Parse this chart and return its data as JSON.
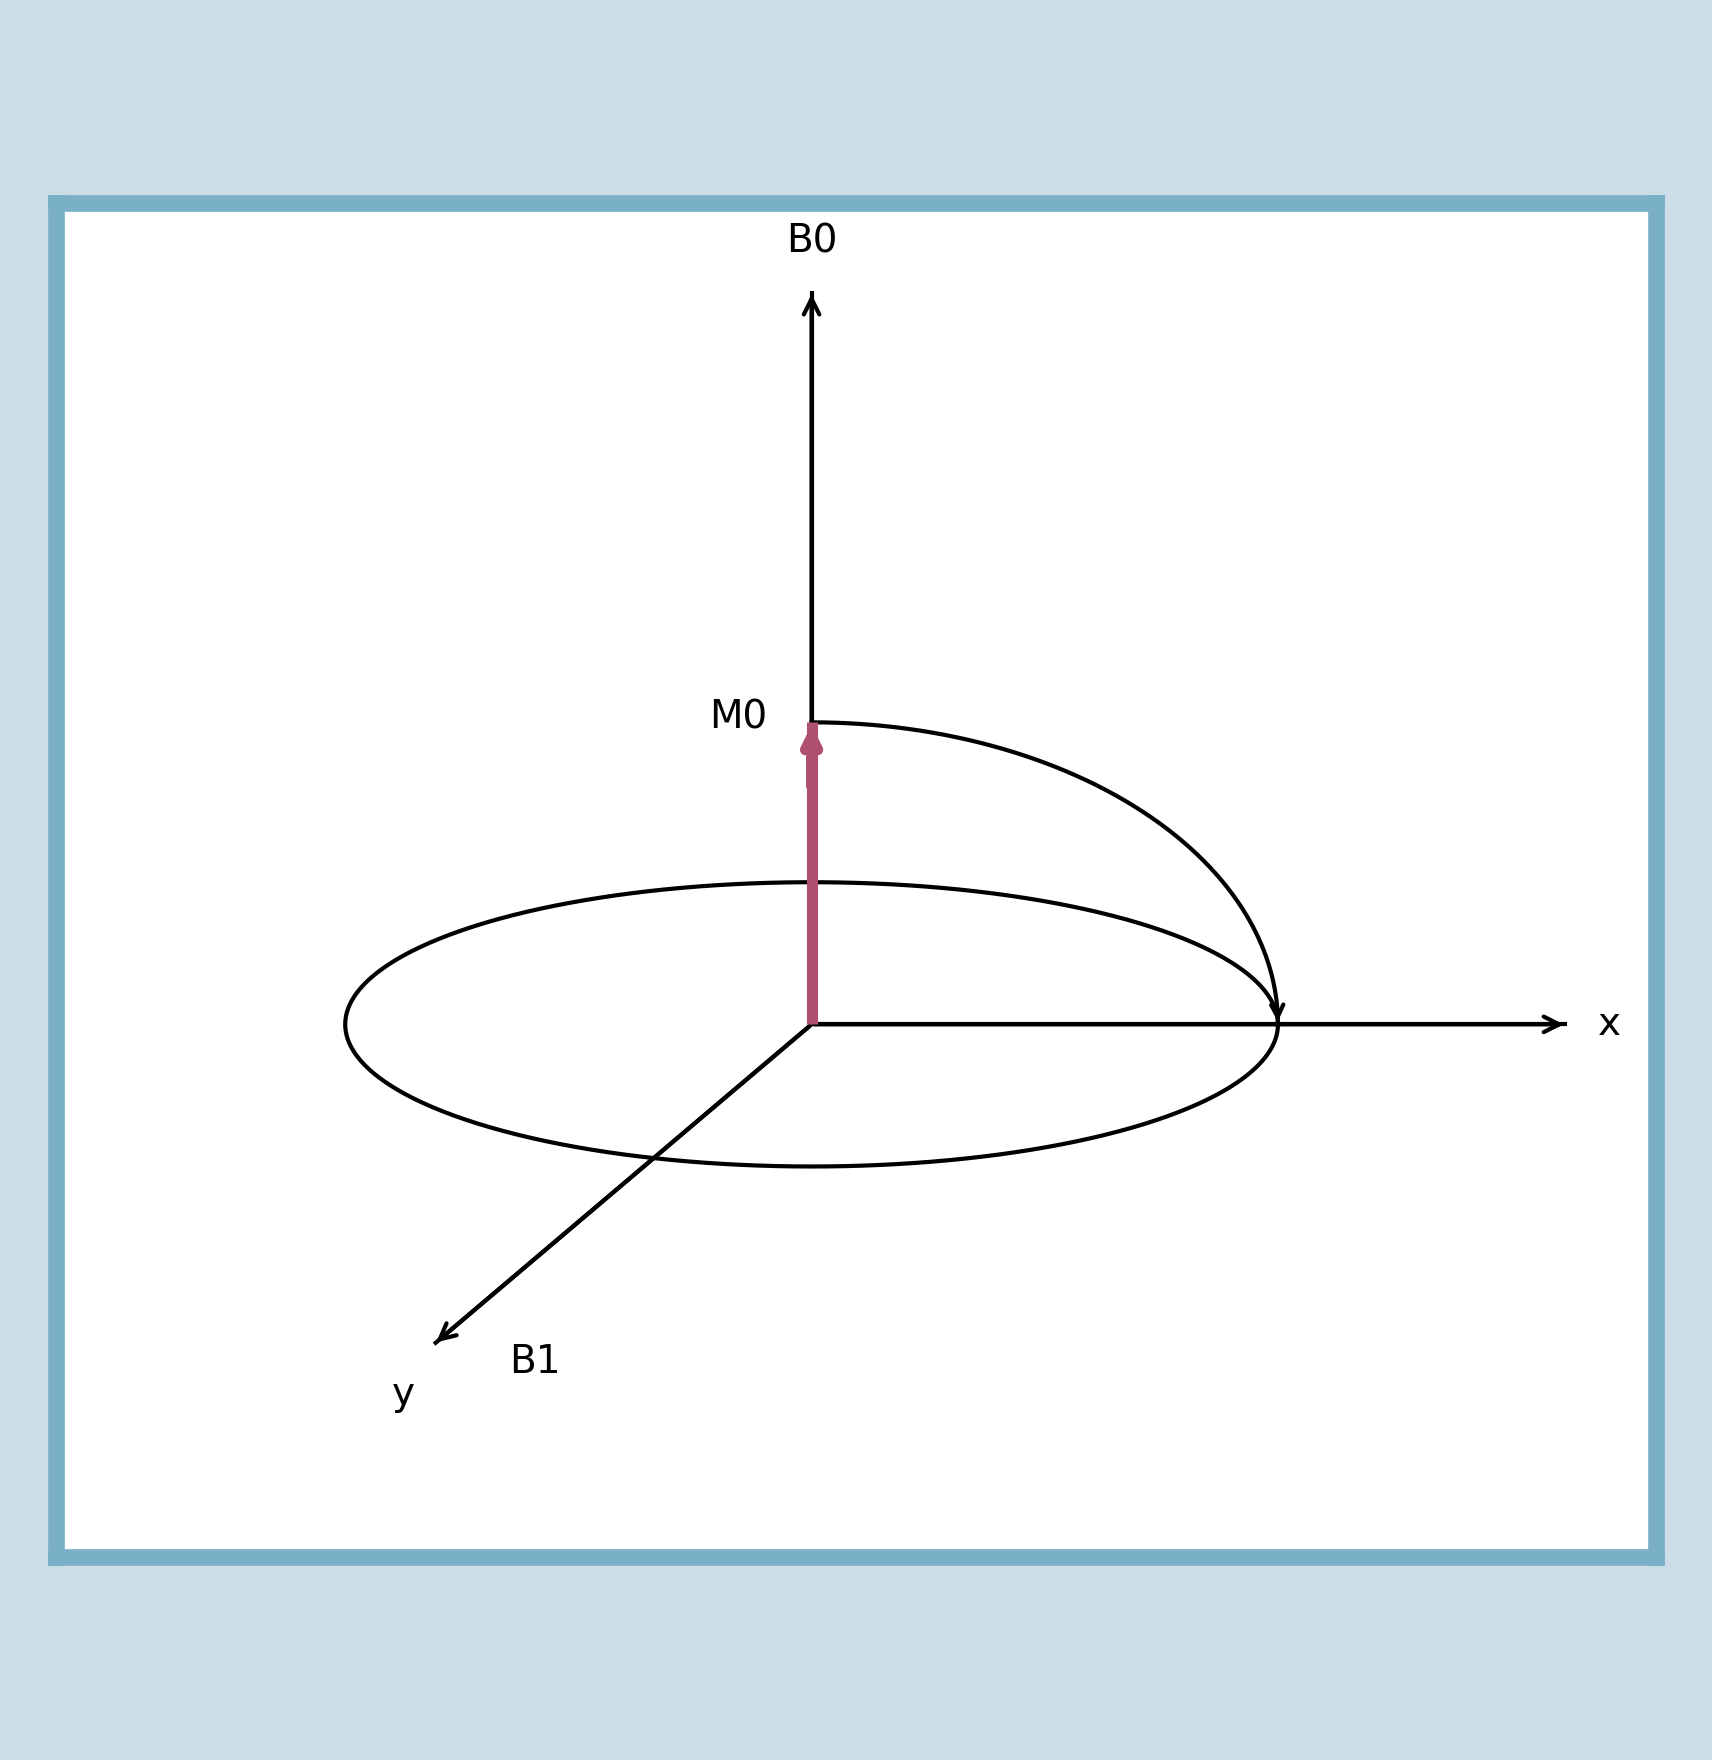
{
  "fig_bg_color": "#ccdde8",
  "inner_bg_color": "#ffffff",
  "border_color": "#7aafc8",
  "axis_color": "#000000",
  "axis_linewidth": 3.0,
  "M0_color": "#b05070",
  "M0_linewidth": 8.0,
  "ellipse_linewidth": 3.0,
  "ellipse_color": "#000000",
  "label_B0": "B0",
  "label_x": "x",
  "label_y": "y",
  "label_B1": "B1",
  "label_M0": "M0",
  "label_fontsize": 28,
  "figsize": [
    17.12,
    17.6
  ],
  "dpi": 100
}
